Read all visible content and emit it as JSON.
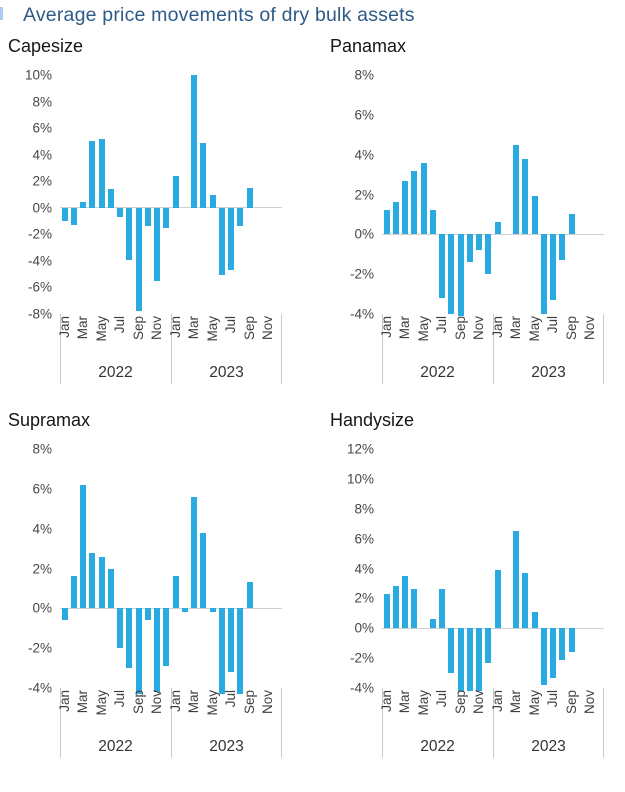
{
  "figure_title": "Average price movements of dry bulk assets",
  "colors": {
    "bar": "#29ABE2",
    "figure_title_text": "#2D5A87",
    "chart_title_text": "#161616",
    "axis_text": "#474747",
    "axis_line": "#C9C9C9"
  },
  "chart_data": [
    {
      "type": "bar",
      "title": "Capesize",
      "ylim": [
        -8,
        10
      ],
      "ytick_step": 2,
      "yticks": [
        "10%",
        "8%",
        "6%",
        "4%",
        "2%",
        "0%",
        "-2%",
        "-4%",
        "-6%",
        "-8%"
      ],
      "xtick_labels": [
        "Jan",
        "Mar",
        "May",
        "Jul",
        "Sep",
        "Nov"
      ],
      "grid": "zero-line-only",
      "years": [
        {
          "label": "2022",
          "values": [
            -1.0,
            -1.3,
            0.4,
            5.0,
            5.2,
            1.4,
            -0.7,
            -3.9,
            -7.8,
            -1.4,
            -5.5,
            -1.5
          ]
        },
        {
          "label": "2023",
          "values": [
            2.4,
            null,
            10.0,
            4.9,
            1.0,
            -5.1,
            -4.7,
            -1.4,
            1.5,
            null,
            null,
            null
          ]
        }
      ]
    },
    {
      "type": "bar",
      "title": "Panamax",
      "ylim": [
        -4,
        8
      ],
      "ytick_step": 2,
      "yticks": [
        "8%",
        "6%",
        "4%",
        "2%",
        "0%",
        "-2%",
        "-4%"
      ],
      "xtick_labels": [
        "Jan",
        "Mar",
        "May",
        "Jul",
        "Sep",
        "Nov"
      ],
      "grid": "zero-line-only",
      "years": [
        {
          "label": "2022",
          "values": [
            1.2,
            1.6,
            2.7,
            3.2,
            3.6,
            1.2,
            -3.2,
            -4.0,
            -4.1,
            -1.4,
            -0.8,
            -2.0
          ]
        },
        {
          "label": "2023",
          "values": [
            0.6,
            null,
            4.5,
            3.8,
            1.9,
            -4.0,
            -3.3,
            -1.3,
            1.0,
            null,
            null,
            null
          ]
        }
      ]
    },
    {
      "type": "bar",
      "title": "Supramax",
      "ylim": [
        -4,
        8
      ],
      "ytick_step": 2,
      "yticks": [
        "8%",
        "6%",
        "4%",
        "2%",
        "0%",
        "-2%",
        "-4%"
      ],
      "xtick_labels": [
        "Jan",
        "Mar",
        "May",
        "Jul",
        "Sep",
        "Nov"
      ],
      "grid": "zero-line-only",
      "years": [
        {
          "label": "2022",
          "values": [
            -0.6,
            1.6,
            6.2,
            2.8,
            2.6,
            2.0,
            -2.0,
            -3.0,
            -4.3,
            -0.6,
            -4.2,
            -2.9
          ]
        },
        {
          "label": "2023",
          "values": [
            1.6,
            -0.2,
            5.6,
            3.8,
            -0.2,
            -4.3,
            -3.2,
            -4.3,
            1.3,
            null,
            null,
            null
          ]
        }
      ]
    },
    {
      "type": "bar",
      "title": "Handysize",
      "ylim": [
        -4,
        12
      ],
      "ytick_step": 2,
      "yticks": [
        "12%",
        "10%",
        "8%",
        "6%",
        "4%",
        "2%",
        "0%",
        "-2%",
        "-4%"
      ],
      "xtick_labels": [
        "Jan",
        "Mar",
        "May",
        "Jul",
        "Sep",
        "Nov"
      ],
      "grid": "zero-line-only",
      "years": [
        {
          "label": "2022",
          "values": [
            2.3,
            2.8,
            3.5,
            2.6,
            null,
            0.6,
            2.6,
            -3.0,
            -4.2,
            -4.2,
            -4.2,
            -2.3
          ]
        },
        {
          "label": "2023",
          "values": [
            3.9,
            null,
            6.5,
            3.7,
            1.1,
            -3.8,
            -3.3,
            -2.1,
            -1.6,
            null,
            null,
            null
          ]
        }
      ]
    }
  ]
}
